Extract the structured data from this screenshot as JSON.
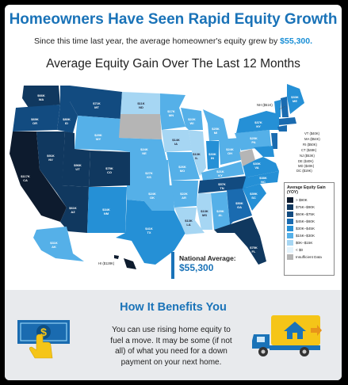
{
  "header": {
    "title": "Homeowners Have Seen Rapid Equity Growth",
    "subtitle_prefix": "Since this time last year, the average homeowner's equity grew by ",
    "subtitle_amount": "$55,300."
  },
  "map": {
    "title": "Average Equity Gain Over The Last 12 Months",
    "legend_title": "Average Equity Gain (YOY)",
    "legend": [
      {
        "label": "> $90K",
        "color": "#0d1b2e"
      },
      {
        "label": "$75K–$90K",
        "color": "#10385f"
      },
      {
        "label": "$60K–$75K",
        "color": "#124b80"
      },
      {
        "label": "$45K–$60K",
        "color": "#1a6bb0"
      },
      {
        "label": "$30K–$45K",
        "color": "#2590d6"
      },
      {
        "label": "$15K–$30K",
        "color": "#55b0e8"
      },
      {
        "label": "$0K–$15K",
        "color": "#a6d6f3"
      },
      {
        "label": "< $0",
        "color": "#e4f3fc"
      },
      {
        "label": "Insufficient Data",
        "color": "#b5b5b5"
      }
    ],
    "national_label": "National Average:",
    "national_value": "$55,300",
    "states": {
      "WA": "$66K",
      "OR": "$69K",
      "ID": "$80K",
      "MT": "$71K",
      "WY": "$29K",
      "CA": "$117K",
      "NV": "$91K",
      "UT": "$96K",
      "AZ": "$61K",
      "CO": "$75K",
      "NM": "$34K",
      "ND": "$11K",
      "SD": "",
      "NE": "$24K",
      "KS": "$27K",
      "OK": "$24K",
      "TX": "$41K",
      "MN": "$17K",
      "IA": "$14K",
      "MO": "$26K",
      "AR": "$22K",
      "LA": "$13K",
      "WI": "$22K",
      "IL": "$13K",
      "MI": "$25K",
      "IN": "$33K",
      "OH": "$24K",
      "KY": "$21K",
      "TN": "$57K",
      "MS": "$13K",
      "AL": "$29K",
      "GA": "$50K",
      "FL": "$75K",
      "SC": "$39K",
      "NC": "$38K",
      "VA": "$30K",
      "WV": "",
      "PA": "$25K",
      "NY": "$37K",
      "ME": "$33K",
      "AK": "$31K",
      "HI": "$128K"
    },
    "northeast_labels": [
      "NH ($51K)",
      "VT ($40K)",
      "MA ($54K)",
      "RI ($50K)",
      "CT ($48K)",
      "NJ ($53K)",
      "DE ($40K)",
      "MD ($40K)",
      "DC ($19K)"
    ]
  },
  "benefits": {
    "title": "How It Benefits You",
    "text_lines": [
      "You can use rising home equity to",
      "fuel a move. It may be some (if not",
      "all) of what you need for a down",
      "payment on your next home."
    ]
  },
  "colors": {
    "brand_blue": "#1a73b8",
    "accent_yellow": "#f5c518",
    "footer_bg": "#e8eaed"
  }
}
